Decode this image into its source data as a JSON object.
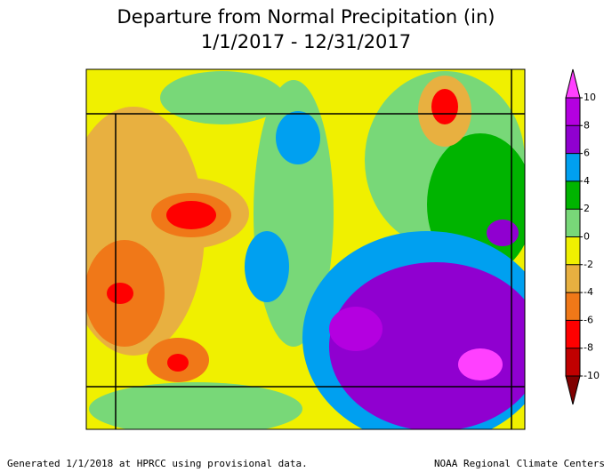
{
  "header": {
    "title": "Departure from Normal Precipitation (in)",
    "subtitle": "1/1/2017 - 12/31/2017"
  },
  "colorbar": {
    "ticks": [
      -10,
      -8,
      -6,
      -4,
      -2,
      0,
      2,
      4,
      6,
      8,
      10
    ],
    "colors": [
      "#c00000",
      "#ff0000",
      "#f07818",
      "#e8b040",
      "#f0f000",
      "#78d878",
      "#00b400",
      "#00a0f0",
      "#9000d0",
      "#b400e0"
    ],
    "under_color": "#800000",
    "over_color": "#ff40ff"
  },
  "footer": {
    "left": "Generated 1/1/2018 at HPRCC using provisional data.",
    "right": "NOAA Regional Climate Centers"
  }
}
